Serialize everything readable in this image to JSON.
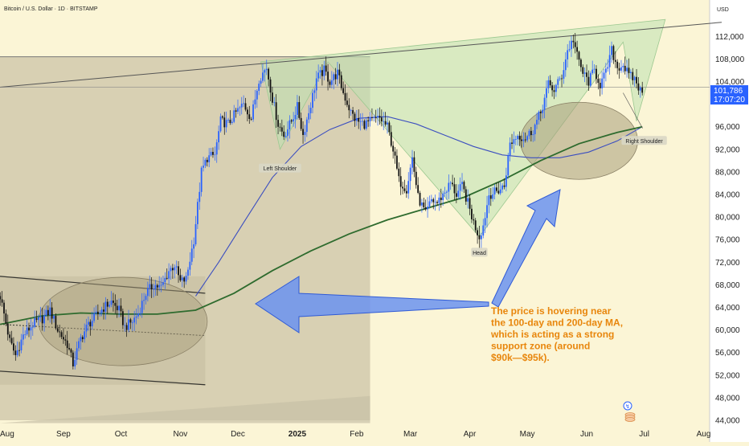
{
  "header": {
    "symbol_line": "Bitcoin / U.S. Dollar · 1D · BITSTAMP"
  },
  "currency": "USD",
  "price_tag": {
    "price": "101,786",
    "countdown": "17:07:20",
    "value": 101786,
    "color": "#2962ff"
  },
  "colors": {
    "up": "#2962ff",
    "down": "#111111",
    "ma100": "#3b4ec0",
    "ma200": "#2e6b2e",
    "accent": "#e8860c"
  },
  "chart_data": {
    "type": "candlestick",
    "title": "",
    "ylim": [
      43000,
      116000
    ],
    "y_ticks": [
      {
        "label": "112,000",
        "value": 112000
      },
      {
        "label": "108,000",
        "value": 108000
      },
      {
        "label": "104,000",
        "value": 104000
      },
      {
        "label": "96,000",
        "value": 96000
      },
      {
        "label": "92,000",
        "value": 92000
      },
      {
        "label": "88,000",
        "value": 88000
      },
      {
        "label": "84,000",
        "value": 84000
      },
      {
        "label": "80,000",
        "value": 80000
      },
      {
        "label": "76,000",
        "value": 76000
      },
      {
        "label": "72,000",
        "value": 72000
      },
      {
        "label": "68,000",
        "value": 68000
      },
      {
        "label": "64,000",
        "value": 64000
      },
      {
        "label": "60,000",
        "value": 60000
      },
      {
        "label": "56,000",
        "value": 56000
      },
      {
        "label": "52,000",
        "value": 52000
      },
      {
        "label": "48,000",
        "value": 48000
      },
      {
        "label": "44,000",
        "value": 44000
      }
    ],
    "x_ticks": [
      {
        "label": "Aug",
        "day": 0
      },
      {
        "label": "Sep",
        "day": 31
      },
      {
        "label": "Oct",
        "day": 61
      },
      {
        "label": "Nov",
        "day": 92
      },
      {
        "label": "Dec",
        "day": 122
      },
      {
        "label": "2025",
        "day": 153,
        "bold": true
      },
      {
        "label": "Feb",
        "day": 184
      },
      {
        "label": "Mar",
        "day": 212
      },
      {
        "label": "Apr",
        "day": 243
      },
      {
        "label": "May",
        "day": 273
      },
      {
        "label": "Jun",
        "day": 304
      },
      {
        "label": "Jul",
        "day": 334
      },
      {
        "label": "Aug",
        "day": 365
      }
    ],
    "price_path": [
      [
        -2,
        66000
      ],
      [
        3,
        58000
      ],
      [
        6,
        55500
      ],
      [
        10,
        59000
      ],
      [
        15,
        61000
      ],
      [
        20,
        62000
      ],
      [
        24,
        63500
      ],
      [
        28,
        60000
      ],
      [
        33,
        57500
      ],
      [
        36,
        54000
      ],
      [
        40,
        58500
      ],
      [
        44,
        61000
      ],
      [
        48,
        62500
      ],
      [
        52,
        64000
      ],
      [
        56,
        65000
      ],
      [
        60,
        63500
      ],
      [
        63,
        60500
      ],
      [
        67,
        61500
      ],
      [
        70,
        63000
      ],
      [
        74,
        66500
      ],
      [
        78,
        68000
      ],
      [
        82,
        67500
      ],
      [
        86,
        70500
      ],
      [
        89,
        71500
      ],
      [
        92,
        68500
      ],
      [
        95,
        69000
      ],
      [
        99,
        76000
      ],
      [
        103,
        88000
      ],
      [
        106,
        90500
      ],
      [
        110,
        91000
      ],
      [
        113,
        97000
      ],
      [
        117,
        96500
      ],
      [
        121,
        98500
      ],
      [
        125,
        100000
      ],
      [
        129,
        97500
      ],
      [
        133,
        104500
      ],
      [
        137,
        106500
      ],
      [
        140,
        101000
      ],
      [
        143,
        96500
      ],
      [
        146,
        94500
      ],
      [
        150,
        97000
      ],
      [
        153,
        99500
      ],
      [
        156,
        94500
      ],
      [
        160,
        100000
      ],
      [
        163,
        104500
      ],
      [
        167,
        106000
      ],
      [
        170,
        104000
      ],
      [
        174,
        105500
      ],
      [
        177,
        102000
      ],
      [
        181,
        98500
      ],
      [
        184,
        97000
      ],
      [
        188,
        96500
      ],
      [
        192,
        97000
      ],
      [
        196,
        97500
      ],
      [
        200,
        96000
      ],
      [
        203,
        92000
      ],
      [
        206,
        86500
      ],
      [
        210,
        85000
      ],
      [
        213,
        90500
      ],
      [
        216,
        83500
      ],
      [
        220,
        80500
      ],
      [
        223,
        83000
      ],
      [
        226,
        82500
      ],
      [
        230,
        84500
      ],
      [
        233,
        86000
      ],
      [
        236,
        84000
      ],
      [
        239,
        85500
      ],
      [
        242,
        82500
      ],
      [
        245,
        79000
      ],
      [
        248,
        76500
      ],
      [
        250,
        78500
      ],
      [
        253,
        84000
      ],
      [
        257,
        84500
      ],
      [
        261,
        85500
      ],
      [
        264,
        93000
      ],
      [
        268,
        94500
      ],
      [
        272,
        94000
      ],
      [
        276,
        95500
      ],
      [
        280,
        98500
      ],
      [
        284,
        103500
      ],
      [
        287,
        102500
      ],
      [
        291,
        105000
      ],
      [
        294,
        109500
      ],
      [
        297,
        111500
      ],
      [
        299,
        108500
      ],
      [
        302,
        105500
      ],
      [
        305,
        104000
      ],
      [
        308,
        106000
      ],
      [
        311,
        103500
      ],
      [
        314,
        105500
      ],
      [
        317,
        109500
      ],
      [
        320,
        106500
      ],
      [
        323,
        107000
      ],
      [
        326,
        105000
      ],
      [
        329,
        104500
      ],
      [
        331,
        103000
      ],
      [
        333,
        101786
      ]
    ],
    "ma100": [
      [
        100,
        66000
      ],
      [
        112,
        72000
      ],
      [
        125,
        79000
      ],
      [
        140,
        87000
      ],
      [
        155,
        92500
      ],
      [
        170,
        95500
      ],
      [
        185,
        97500
      ],
      [
        200,
        97800
      ],
      [
        215,
        96500
      ],
      [
        230,
        94500
      ],
      [
        245,
        92500
      ],
      [
        260,
        91000
      ],
      [
        275,
        90500
      ],
      [
        290,
        90500
      ],
      [
        305,
        91500
      ],
      [
        320,
        93500
      ],
      [
        333,
        96000
      ]
    ],
    "ma200": [
      [
        -2,
        61000
      ],
      [
        20,
        62500
      ],
      [
        40,
        63000
      ],
      [
        60,
        62800
      ],
      [
        80,
        62800
      ],
      [
        100,
        63500
      ],
      [
        120,
        66500
      ],
      [
        140,
        70500
      ],
      [
        160,
        74000
      ],
      [
        180,
        77000
      ],
      [
        200,
        79500
      ],
      [
        220,
        81500
      ],
      [
        240,
        83500
      ],
      [
        260,
        86500
      ],
      [
        280,
        90000
      ],
      [
        300,
        93000
      ],
      [
        320,
        95000
      ],
      [
        333,
        96000
      ]
    ],
    "labels": [
      {
        "text": "Left Shoulder",
        "day": 144,
        "price": 88600
      },
      {
        "text": "Head",
        "day": 248,
        "price": 73700
      },
      {
        "text": "Right Shoulder",
        "day": 334,
        "price": 93500
      }
    ],
    "annotation": "The price is hovering near the 100-day and 200-day MA, which is acting as a strong support zone (around $90k—$95k)."
  }
}
